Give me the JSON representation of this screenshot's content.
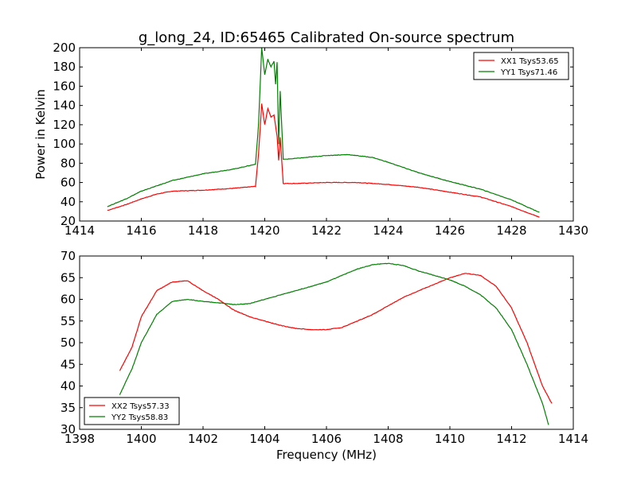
{
  "chart_data": [
    {
      "type": "line",
      "title": "g_long_24, ID:65465 Calibrated On-source spectrum",
      "xlabel": "",
      "ylabel": "Power in Kelvin",
      "xlim": [
        1414,
        1430
      ],
      "ylim": [
        20,
        200
      ],
      "xticks": [
        1414,
        1416,
        1418,
        1420,
        1422,
        1424,
        1426,
        1428,
        1430
      ],
      "yticks": [
        20,
        40,
        60,
        80,
        100,
        120,
        140,
        160,
        180,
        200
      ],
      "legend_position": "top-right",
      "series": [
        {
          "name": "XX1 Tsys53.65",
          "color": "#ff0000",
          "x": [
            1414.9,
            1415.5,
            1416,
            1416.5,
            1417,
            1418,
            1419,
            1419.7,
            1419.8,
            1419.9,
            1420.0,
            1420.1,
            1420.2,
            1420.3,
            1420.4,
            1420.45,
            1420.5,
            1420.6,
            1421,
            1422,
            1423,
            1424,
            1425,
            1426,
            1427,
            1428,
            1428.9
          ],
          "y": [
            31,
            37,
            43,
            48,
            51,
            52,
            54,
            56,
            90,
            142,
            120,
            137,
            128,
            130,
            108,
            83,
            107,
            59,
            59,
            60,
            60,
            58,
            55,
            50,
            45,
            35,
            24
          ]
        },
        {
          "name": "YY1 Tsys71.46",
          "color": "#008000",
          "x": [
            1414.9,
            1415.5,
            1416,
            1417,
            1418,
            1419,
            1419.7,
            1419.8,
            1419.9,
            1420.0,
            1420.1,
            1420.2,
            1420.3,
            1420.35,
            1420.4,
            1420.45,
            1420.5,
            1420.6,
            1421,
            1422,
            1422.7,
            1423.5,
            1424,
            1425,
            1426,
            1427,
            1428,
            1428.9
          ],
          "y": [
            35,
            43,
            51,
            62,
            69,
            74,
            79,
            120,
            200,
            172,
            188,
            180,
            186,
            162,
            185,
            100,
            155,
            84,
            85,
            88,
            89,
            86,
            81,
            70,
            61,
            53,
            42,
            29
          ]
        }
      ]
    },
    {
      "type": "line",
      "title": "",
      "xlabel": "Frequency (MHz)",
      "ylabel": "",
      "xlim": [
        1398,
        1414
      ],
      "ylim": [
        30,
        70
      ],
      "xticks": [
        1398,
        1400,
        1402,
        1404,
        1406,
        1408,
        1410,
        1412,
        1414
      ],
      "yticks": [
        30,
        35,
        40,
        45,
        50,
        55,
        60,
        65,
        70
      ],
      "legend_position": "bottom-left",
      "series": [
        {
          "name": "XX2 Tsys57.33",
          "color": "#ff0000",
          "x": [
            1399.3,
            1399.7,
            1400,
            1400.5,
            1401,
            1401.5,
            1402,
            1402.5,
            1403,
            1403.5,
            1404,
            1404.5,
            1405,
            1405.5,
            1406,
            1406.5,
            1407,
            1407.5,
            1408,
            1408.5,
            1409,
            1409.5,
            1410,
            1410.5,
            1411,
            1411.5,
            1412,
            1412.5,
            1413,
            1413.3
          ],
          "y": [
            43.5,
            49,
            56,
            62,
            64,
            64.3,
            62,
            60,
            57.5,
            56,
            55,
            54,
            53.3,
            53,
            53,
            53.5,
            55,
            56.5,
            58.5,
            60.5,
            62,
            63.5,
            65,
            66,
            65.5,
            63,
            58,
            50,
            40,
            36
          ]
        },
        {
          "name": "YY2 Tsys58.83",
          "color": "#008000",
          "x": [
            1399.3,
            1399.7,
            1400,
            1400.5,
            1401,
            1401.5,
            1402,
            1402.5,
            1403,
            1403.5,
            1404,
            1404.5,
            1405,
            1405.5,
            1406,
            1406.5,
            1407,
            1407.5,
            1408,
            1408.5,
            1409,
            1409.5,
            1410,
            1410.5,
            1411,
            1411.5,
            1412,
            1412.5,
            1413,
            1413.2
          ],
          "y": [
            38,
            44,
            50,
            56.5,
            59.5,
            60,
            59.5,
            59.2,
            58.8,
            59,
            60,
            61,
            62,
            63,
            64,
            65.5,
            67,
            68,
            68.3,
            67.8,
            66.5,
            65.5,
            64.5,
            63,
            61,
            58,
            53,
            45,
            36,
            31
          ]
        }
      ]
    }
  ]
}
